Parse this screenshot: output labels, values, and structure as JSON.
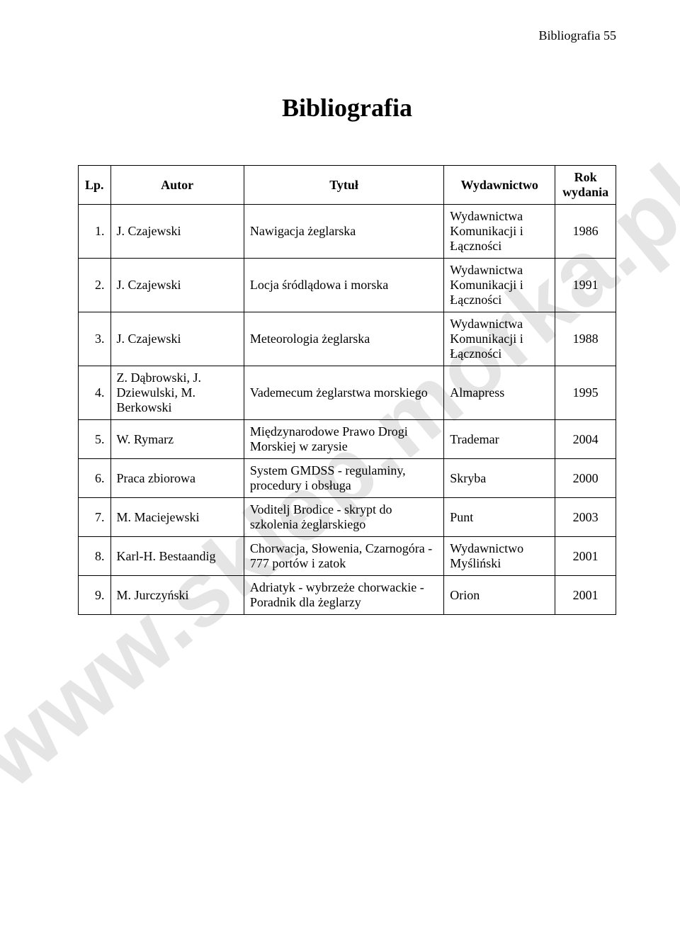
{
  "watermark": "www.sklep.morka.pl",
  "running_head": "Bibliografia  55",
  "title": "Bibliografia",
  "table": {
    "headers": {
      "lp": "Lp.",
      "autor": "Autor",
      "tytul": "Tytuł",
      "wydawnictwo": "Wydawnictwo",
      "rok": "Rok wydania"
    },
    "rows": [
      {
        "lp": "1.",
        "autor": "J. Czajewski",
        "tytul": "Nawigacja żeglarska",
        "wyd": "Wydawnictwa Komunikacji i Łączności",
        "rok": "1986"
      },
      {
        "lp": "2.",
        "autor": "J. Czajewski",
        "tytul": "Locja śródlądowa i morska",
        "wyd": "Wydawnictwa Komunikacji i Łączności",
        "rok": "1991"
      },
      {
        "lp": "3.",
        "autor": "J. Czajewski",
        "tytul": "Meteorologia żeglarska",
        "wyd": "Wydawnictwa Komunikacji i Łączności",
        "rok": "1988"
      },
      {
        "lp": "4.",
        "autor": "Z. Dąbrowski, J. Dziewulski, M. Berkowski",
        "tytul": "Vademecum żeglarstwa morskiego",
        "wyd": "Almapress",
        "rok": "1995"
      },
      {
        "lp": "5.",
        "autor": "W. Rymarz",
        "tytul": "Międzynarodowe Prawo Drogi Morskiej w zarysie",
        "wyd": "Trademar",
        "rok": "2004"
      },
      {
        "lp": "6.",
        "autor": "Praca zbiorowa",
        "tytul": "System GMDSS - regulaminy, procedury i obsługa",
        "wyd": "Skryba",
        "rok": "2000"
      },
      {
        "lp": "7.",
        "autor": "M. Maciejewski",
        "tytul": "Voditelj Brodice - skrypt do szkolenia żeglarskiego",
        "wyd": "Punt",
        "rok": "2003"
      },
      {
        "lp": "8.",
        "autor": "Karl-H. Bestaandig",
        "tytul": "Chorwacja, Słowenia, Czarnogóra - 777 portów i zatok",
        "wyd": "Wydawnictwo Myśliński",
        "rok": "2001"
      },
      {
        "lp": "9.",
        "autor": "M. Jurczyński",
        "tytul": "Adriatyk - wybrzeże chorwackie - Poradnik dla żeglarzy",
        "wyd": "Orion",
        "rok": "2001"
      }
    ]
  },
  "colors": {
    "text": "#000000",
    "background": "#ffffff",
    "watermark": "rgba(0,0,0,0.10)",
    "border": "#000000"
  }
}
